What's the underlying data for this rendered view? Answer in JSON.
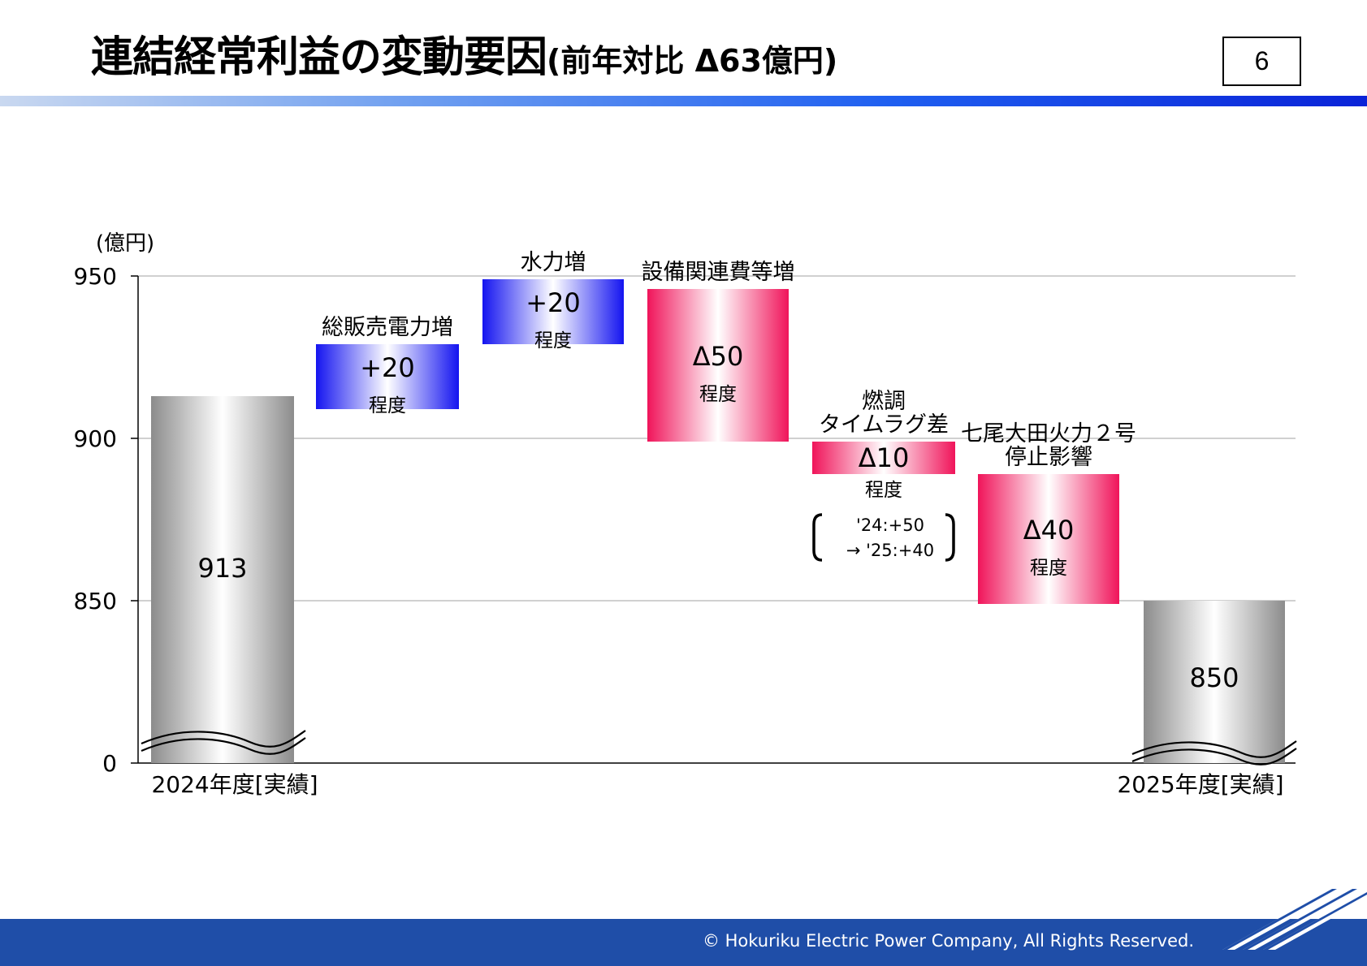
{
  "header": {
    "title_main": "連結経常利益の変動要因",
    "title_sub": "(前年対比 Δ63億円)",
    "page_number": "6"
  },
  "footer": {
    "copyright": "© Hokuriku Electric Power Company, All  Rights  Reserved."
  },
  "colors": {
    "increase": "#1414f0",
    "decrease": "#f0145a",
    "total": "#8c8c8c",
    "title_bar_end": "#0a23d8",
    "footer_bg": "#1f4ea8"
  },
  "chart_data": {
    "type": "waterfall",
    "unit_label": "(億円)",
    "y_ticks": [
      "950",
      "900",
      "850",
      "0"
    ],
    "y_axis_break": true,
    "ylim_visible": [
      850,
      950
    ],
    "grid": true,
    "steps": [
      {
        "kind": "total",
        "label": "2024年度[実績]",
        "value": 913,
        "value_label": "913",
        "base": 0,
        "top": 913
      },
      {
        "kind": "increase",
        "label_lines": [
          "総販売電力増"
        ],
        "value": 20,
        "value_label": "+20",
        "note": "程度",
        "base": 913,
        "top": 933
      },
      {
        "kind": "increase",
        "label_lines": [
          "水力増"
        ],
        "value": 20,
        "value_label": "+20",
        "note": "程度",
        "base": 933,
        "top": 953
      },
      {
        "kind": "decrease",
        "label_lines": [
          "設備関連費等増"
        ],
        "value": -50,
        "value_label": "Δ50",
        "note": "程度",
        "base": 953,
        "top": 903
      },
      {
        "kind": "decrease",
        "label_lines": [
          "燃調",
          "タイムラグ差"
        ],
        "value": -10,
        "value_label": "Δ10",
        "note": "程度",
        "bracket_lines": [
          "'24:+50",
          "→ '25:+40"
        ],
        "base": 903,
        "top": 893
      },
      {
        "kind": "decrease",
        "label_lines": [
          "七尾大田火力２号",
          "停止影響"
        ],
        "value": -40,
        "value_label": "Δ40",
        "note": "程度",
        "base": 893,
        "top": 853
      },
      {
        "kind": "total",
        "label": "2025年度[実績]",
        "value": 850,
        "value_label": "850",
        "base": 0,
        "top": 850
      }
    ]
  }
}
